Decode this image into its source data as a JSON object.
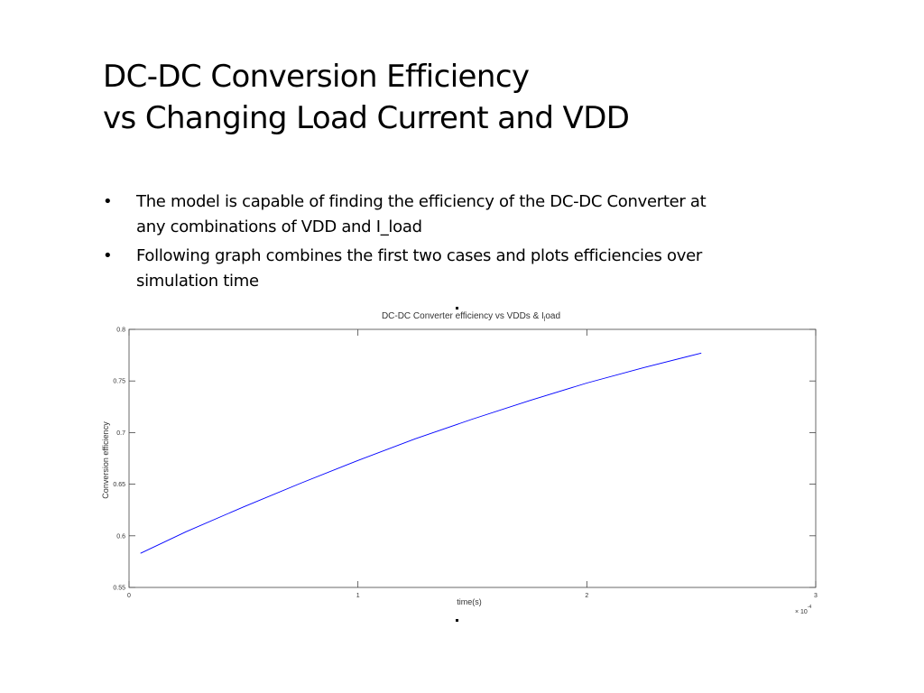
{
  "slide": {
    "title_line1": "DC-DC Conversion Efficiency",
    "title_line2": "vs Changing Load Current and VDD",
    "bullets": [
      "The model is capable of finding the efficiency of the DC-DC Converter at any combinations of VDD and I_load",
      "Following graph combines the first two cases and plots efficiencies over simulation time"
    ],
    "bullet_glyph": "•"
  },
  "chart_data": {
    "type": "line",
    "title": "DC-DC Converter efficiency vs VDDs & I",
    "title_subscript": "l",
    "title_suffix": "oad",
    "xlabel": "time(s)",
    "ylabel": "Conversion efficiency",
    "x_multiplier": "× 10",
    "x_multiplier_exp": "-4",
    "xlim": [
      0,
      3
    ],
    "ylim": [
      0.55,
      0.8
    ],
    "xticks": [
      0,
      1,
      2,
      3
    ],
    "xtick_labels": [
      "0",
      "1",
      "2",
      "3"
    ],
    "yticks": [
      0.55,
      0.6,
      0.65,
      0.7,
      0.75,
      0.8
    ],
    "ytick_labels": [
      "0.55",
      "0.6",
      "0.65",
      "0.7",
      "0.75",
      "0.8"
    ],
    "grid": false,
    "line_color": "#0000ff",
    "series": [
      {
        "name": "efficiency",
        "x": [
          0.05,
          0.25,
          0.5,
          0.75,
          1.0,
          1.25,
          1.5,
          1.75,
          2.0,
          2.25,
          2.5
        ],
        "y": [
          0.583,
          0.604,
          0.628,
          0.651,
          0.673,
          0.694,
          0.713,
          0.731,
          0.748,
          0.763,
          0.777
        ]
      }
    ]
  }
}
